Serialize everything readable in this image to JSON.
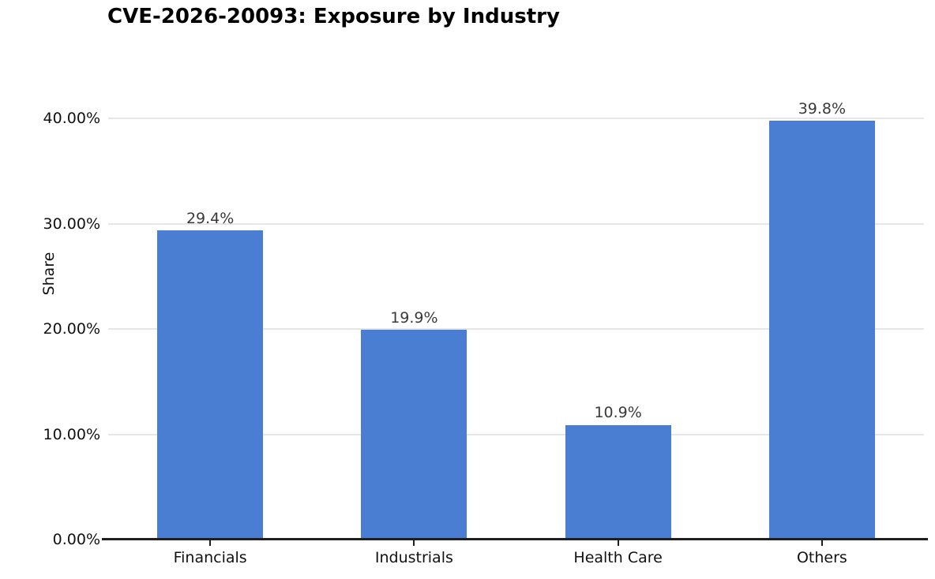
{
  "chart_data": {
    "type": "bar",
    "title": "CVE-2026-20093: Exposure by Industry",
    "categories": [
      "Financials",
      "Industrials",
      "Health Care",
      "Others"
    ],
    "values": [
      29.4,
      19.9,
      10.9,
      39.8
    ],
    "value_labels": [
      "29.4%",
      "19.9%",
      "10.9%",
      "39.8%"
    ],
    "xlabel": "",
    "ylabel": "Share",
    "ylim": [
      0,
      40
    ],
    "yticks": [
      {
        "value": 0,
        "label": "0.00%"
      },
      {
        "value": 10,
        "label": "10.00%"
      },
      {
        "value": 20,
        "label": "20.00%"
      },
      {
        "value": 30,
        "label": "30.00%"
      },
      {
        "value": 40,
        "label": "40.00%"
      }
    ],
    "grid": "horizontal",
    "legend": "none",
    "bar_color": "#4a7ed2",
    "grid_color": "#e6e6e6",
    "axis_color": "#1f1f1f",
    "background": "#ffffff"
  }
}
